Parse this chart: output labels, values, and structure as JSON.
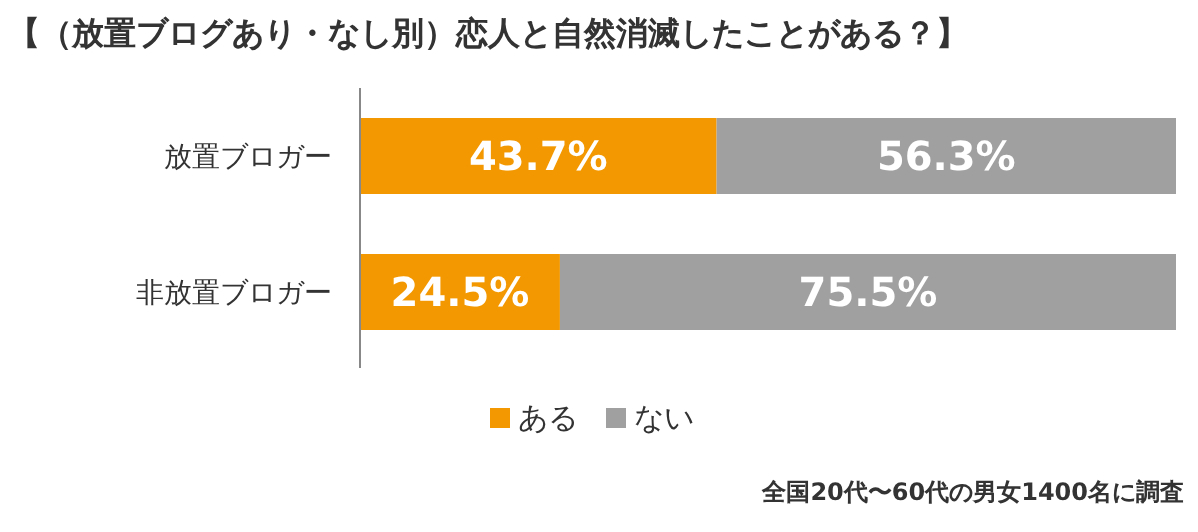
{
  "chart_data": {
    "type": "bar",
    "orientation": "horizontal",
    "stacked": true,
    "title": "【（放置ブログあり・なし別）恋人と自然消滅したことがある？】",
    "categories": [
      "放置ブロガー",
      "非放置ブロガー"
    ],
    "series": [
      {
        "name": "ある",
        "color": "#f39800",
        "values": [
          43.7,
          24.5
        ],
        "value_labels": [
          "43.7%",
          "24.5%"
        ]
      },
      {
        "name": "ない",
        "color": "#a0a0a0",
        "values": [
          56.3,
          75.5
        ],
        "value_labels": [
          "56.3%",
          "75.5%"
        ]
      }
    ],
    "tick_labels": "y",
    "legend": "bottom",
    "annotations": [
      "全国20代〜60代の男女1400名に調査"
    ]
  }
}
